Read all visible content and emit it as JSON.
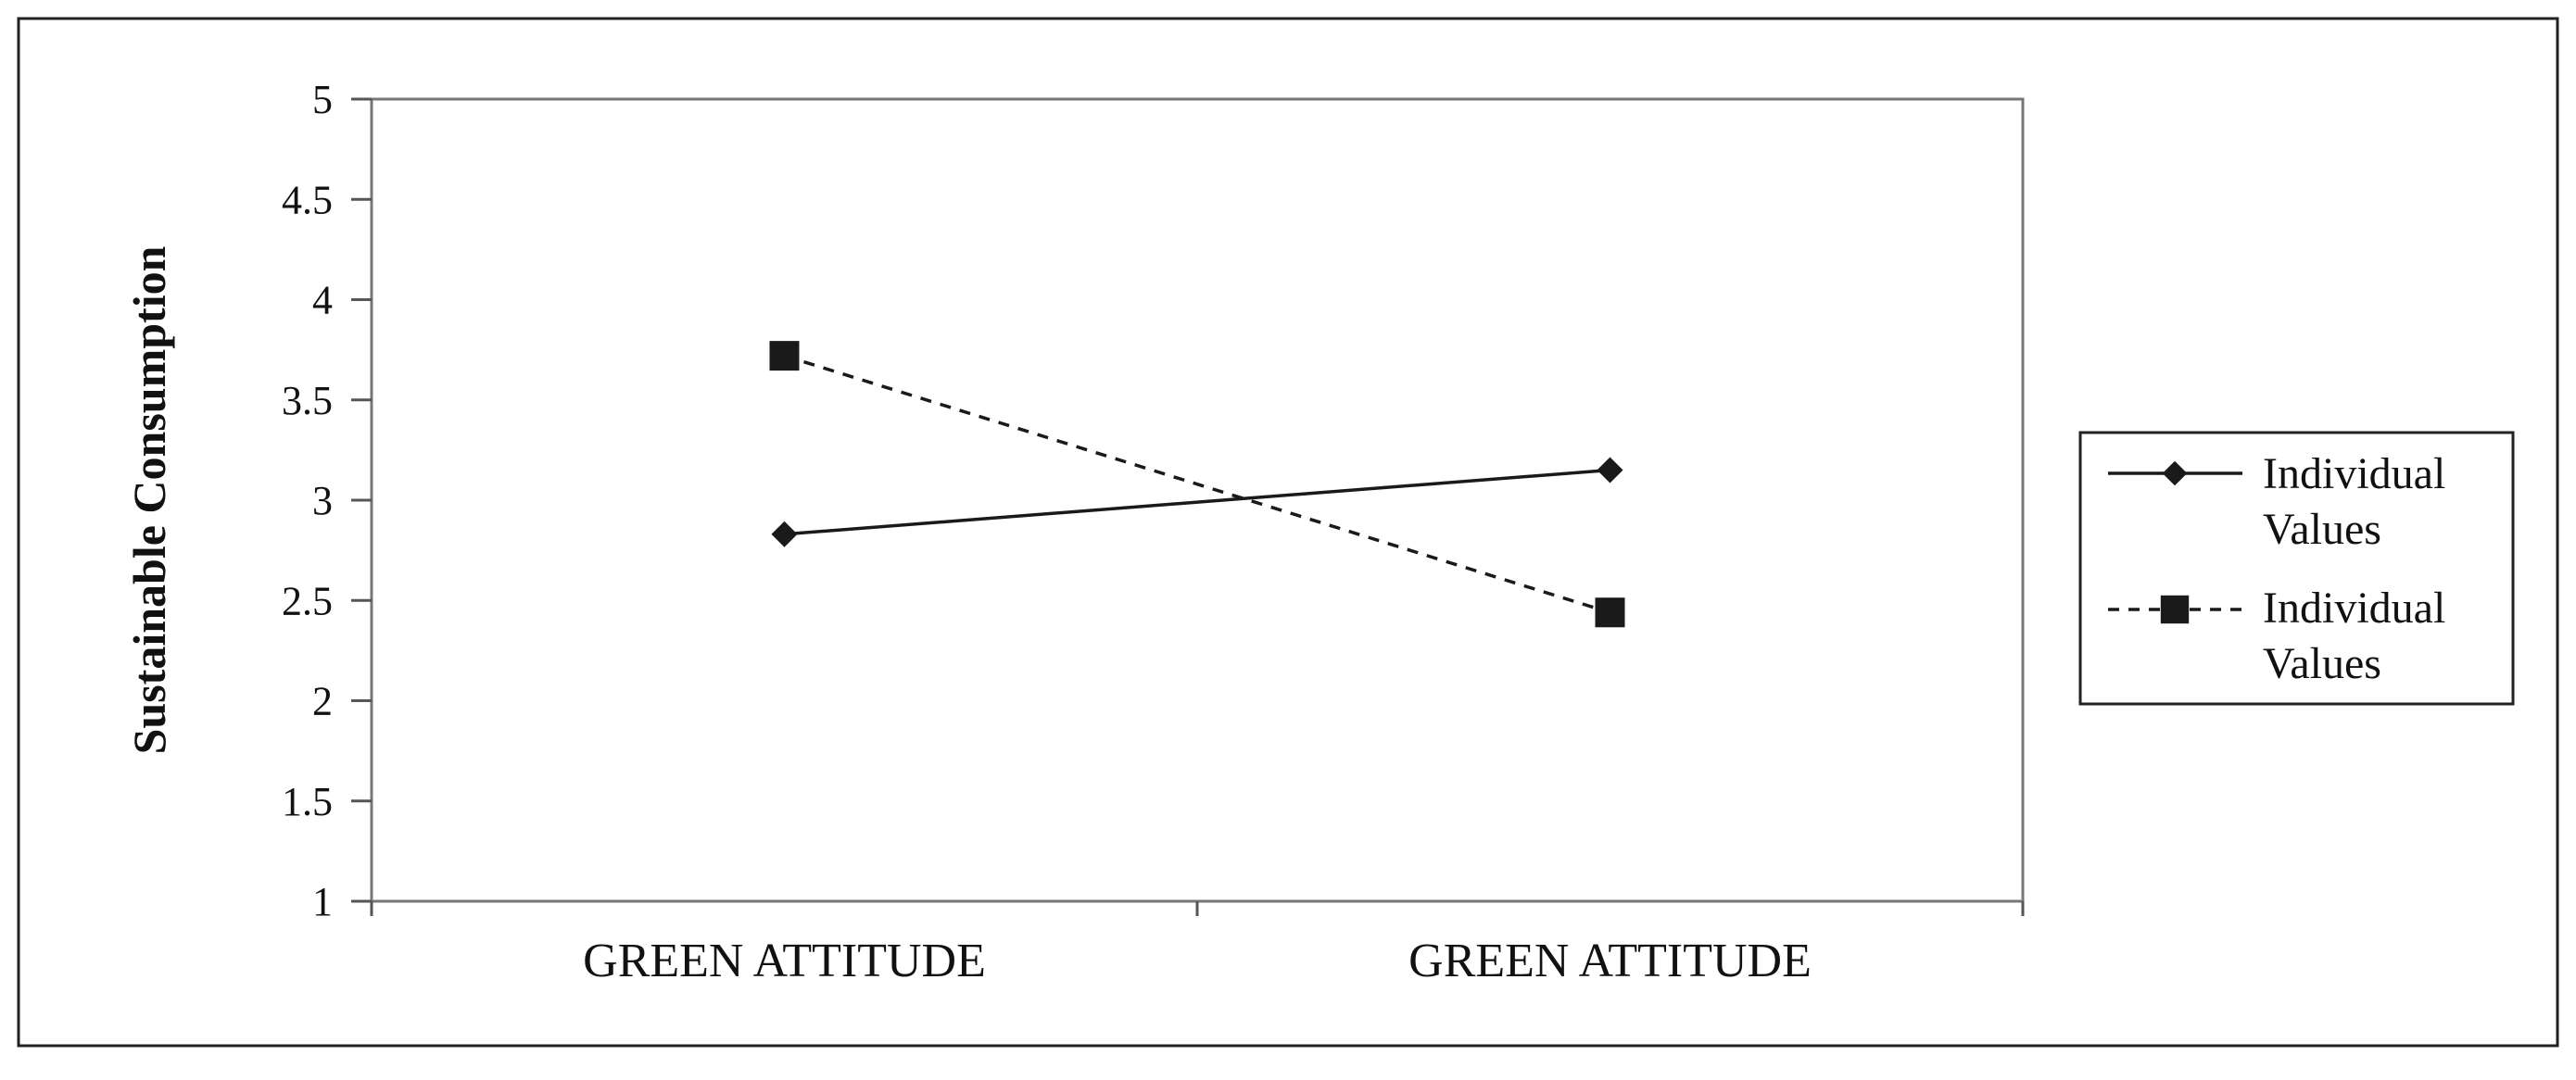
{
  "chart_data": {
    "type": "line",
    "title": "",
    "xlabel": "",
    "ylabel": "Sustainable Consumption",
    "categories": [
      "GREEN ATTITUDE",
      "GREEN ATTITUDE"
    ],
    "ylim": [
      1,
      5
    ],
    "yticks": [
      "1",
      "1.5",
      "2",
      "2.5",
      "3",
      "3.5",
      "4",
      "4.5",
      "5"
    ],
    "grid": false,
    "legend_position": "right",
    "series": [
      {
        "name_lines": [
          "Individual",
          "Values"
        ],
        "values": [
          2.83,
          3.15
        ],
        "line_style": "solid",
        "marker": "diamond",
        "color": "#1a1a1a"
      },
      {
        "name_lines": [
          "Individual",
          "Values"
        ],
        "values": [
          3.72,
          2.44
        ],
        "line_style": "dashed",
        "marker": "square",
        "color": "#1a1a1a"
      }
    ]
  }
}
